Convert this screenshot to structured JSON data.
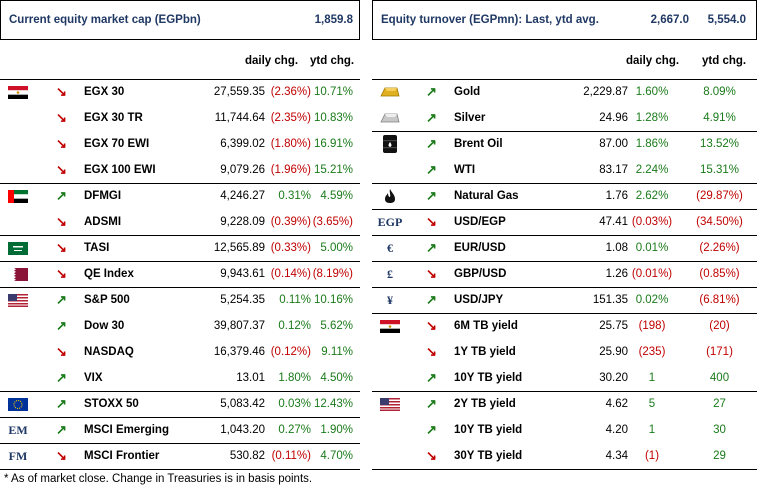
{
  "left_header": {
    "title": "Current equity market cap (EGPbn)",
    "value": "1,859.8"
  },
  "right_header": {
    "title": "Equity turnover (EGPmn): Last, ytd avg.",
    "value1": "2,667.0",
    "value2": "5,554.0"
  },
  "columns": {
    "daily": "daily chg.",
    "ytd": "ytd chg."
  },
  "left_rows": [
    {
      "icon": "egypt-flag-icon",
      "dir": "down",
      "name": "EGX 30",
      "value": "27,559.35",
      "daily": "(2.36%)",
      "daily_sign": "neg",
      "ytd": "10.71%",
      "ytd_sign": "pos"
    },
    {
      "icon": "",
      "dir": "down",
      "name": "EGX 30 TR",
      "value": "11,744.64",
      "daily": "(2.35%)",
      "daily_sign": "neg",
      "ytd": "10.83%",
      "ytd_sign": "pos"
    },
    {
      "icon": "",
      "dir": "down",
      "name": "EGX 70 EWI",
      "value": "6,399.02",
      "daily": "(1.80%)",
      "daily_sign": "neg",
      "ytd": "16.91%",
      "ytd_sign": "pos"
    },
    {
      "icon": "",
      "dir": "down",
      "name": "EGX 100 EWI",
      "value": "9,079.26",
      "daily": "(1.96%)",
      "daily_sign": "neg",
      "ytd": "15.21%",
      "ytd_sign": "pos"
    },
    {
      "icon": "uae-flag-icon",
      "dir": "up",
      "name": "DFMGI",
      "value": "4,246.27",
      "daily": "0.31%",
      "daily_sign": "pos",
      "ytd": "4.59%",
      "ytd_sign": "pos"
    },
    {
      "icon": "",
      "dir": "down",
      "name": "ADSMI",
      "value": "9,228.09",
      "daily": "(0.39%)",
      "daily_sign": "neg",
      "ytd": "(3.65%)",
      "ytd_sign": "neg"
    },
    {
      "icon": "saudi-flag-icon",
      "dir": "down",
      "name": "TASI",
      "value": "12,565.89",
      "daily": "(0.33%)",
      "daily_sign": "neg",
      "ytd": "5.00%",
      "ytd_sign": "pos"
    },
    {
      "icon": "qatar-flag-icon",
      "dir": "down",
      "name": "QE Index",
      "value": "9,943.61",
      "daily": "(0.14%)",
      "daily_sign": "neg",
      "ytd": "(8.19%)",
      "ytd_sign": "neg"
    },
    {
      "icon": "usa-flag-icon",
      "dir": "up",
      "name": "S&P 500",
      "value": "5,254.35",
      "daily": "0.11%",
      "daily_sign": "pos",
      "ytd": "10.16%",
      "ytd_sign": "pos"
    },
    {
      "icon": "",
      "dir": "up",
      "name": "Dow 30",
      "value": "39,807.37",
      "daily": "0.12%",
      "daily_sign": "pos",
      "ytd": "5.62%",
      "ytd_sign": "pos"
    },
    {
      "icon": "",
      "dir": "down",
      "name": "NASDAQ",
      "value": "16,379.46",
      "daily": "(0.12%)",
      "daily_sign": "neg",
      "ytd": "9.11%",
      "ytd_sign": "pos"
    },
    {
      "icon": "",
      "dir": "up",
      "name": "VIX",
      "value": "13.01",
      "daily": "1.80%",
      "daily_sign": "pos",
      "ytd": "4.50%",
      "ytd_sign": "pos"
    },
    {
      "icon": "eu-flag-icon",
      "dir": "up",
      "name": "STOXX 50",
      "value": "5,083.42",
      "daily": "0.03%",
      "daily_sign": "pos",
      "ytd": "12.43%",
      "ytd_sign": "pos"
    },
    {
      "icon": "em-text-icon",
      "icon_text": "EM",
      "dir": "up",
      "name": "MSCI Emerging",
      "value": "1,043.20",
      "daily": "0.27%",
      "daily_sign": "pos",
      "ytd": "1.90%",
      "ytd_sign": "pos"
    },
    {
      "icon": "fm-text-icon",
      "icon_text": "FM",
      "dir": "down",
      "name": "MSCI Frontier",
      "value": "530.82",
      "daily": "(0.11%)",
      "daily_sign": "neg",
      "ytd": "4.70%",
      "ytd_sign": "pos"
    }
  ],
  "right_rows": [
    {
      "icon": "gold-bar-icon",
      "dir": "up",
      "name": "Gold",
      "value": "2,229.87",
      "daily": "1.60%",
      "daily_sign": "pos",
      "ytd": "8.09%",
      "ytd_sign": "pos"
    },
    {
      "icon": "silver-bar-icon",
      "dir": "up",
      "name": "Silver",
      "value": "24.96",
      "daily": "1.28%",
      "daily_sign": "pos",
      "ytd": "4.91%",
      "ytd_sign": "pos"
    },
    {
      "icon": "oil-barrel-icon",
      "dir": "up",
      "name": "Brent Oil",
      "value": "87.00",
      "daily": "1.86%",
      "daily_sign": "pos",
      "ytd": "13.52%",
      "ytd_sign": "pos"
    },
    {
      "icon": "",
      "dir": "up",
      "name": "WTI",
      "value": "83.17",
      "daily": "2.24%",
      "daily_sign": "pos",
      "ytd": "15.31%",
      "ytd_sign": "pos"
    },
    {
      "icon": "flame-icon",
      "dir": "up",
      "name": "Natural Gas",
      "value": "1.76",
      "daily": "2.62%",
      "daily_sign": "pos",
      "ytd": "(29.87%)",
      "ytd_sign": "neg"
    },
    {
      "icon": "egp-text-icon",
      "icon_text": "EGP",
      "dir": "down",
      "name": "USD/EGP",
      "value": "47.41",
      "daily": "(0.03%)",
      "daily_sign": "neg",
      "ytd": "(34.50%)",
      "ytd_sign": "neg"
    },
    {
      "icon": "euro-icon",
      "icon_text": "€",
      "dir": "up",
      "name": "EUR/USD",
      "value": "1.08",
      "daily": "0.01%",
      "daily_sign": "pos",
      "ytd": "(2.26%)",
      "ytd_sign": "neg"
    },
    {
      "icon": "pound-icon",
      "icon_text": "£",
      "dir": "down",
      "name": "GBP/USD",
      "value": "1.26",
      "daily": "(0.01%)",
      "daily_sign": "neg",
      "ytd": "(0.85%)",
      "ytd_sign": "neg"
    },
    {
      "icon": "yen-icon",
      "icon_text": "¥",
      "dir": "up",
      "name": "USD/JPY",
      "value": "151.35",
      "daily": "0.02%",
      "daily_sign": "pos",
      "ytd": "(6.81%)",
      "ytd_sign": "neg"
    },
    {
      "icon": "egypt-flag-icon",
      "dir": "down",
      "name": "6M TB yield",
      "value": "25.75",
      "daily": "(198)",
      "daily_sign": "neg",
      "ytd": "(20)",
      "ytd_sign": "neg"
    },
    {
      "icon": "",
      "dir": "down",
      "name": "1Y TB yield",
      "value": "25.90",
      "daily": "(235)",
      "daily_sign": "neg",
      "ytd": "(171)",
      "ytd_sign": "neg"
    },
    {
      "icon": "",
      "dir": "up",
      "name": "10Y TB yield",
      "value": "30.20",
      "daily": "1",
      "daily_sign": "pos",
      "ytd": "400",
      "ytd_sign": "pos"
    },
    {
      "icon": "usa-flag-icon",
      "dir": "up",
      "name": "2Y TB yield",
      "value": "4.62",
      "daily": "5",
      "daily_sign": "pos",
      "ytd": "27",
      "ytd_sign": "pos"
    },
    {
      "icon": "",
      "dir": "up",
      "name": "10Y TB yield",
      "value": "4.20",
      "daily": "1",
      "daily_sign": "pos",
      "ytd": "30",
      "ytd_sign": "pos"
    },
    {
      "icon": "",
      "dir": "down",
      "name": "30Y TB yield",
      "value": "4.34",
      "daily": "(1)",
      "daily_sign": "neg",
      "ytd": "29",
      "ytd_sign": "pos"
    }
  ],
  "footnote": "* As of market close. Change in Treasuries is in basis points."
}
